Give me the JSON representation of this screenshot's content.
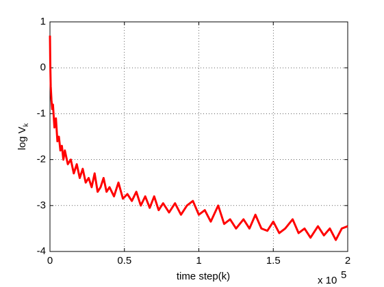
{
  "chart_data": {
    "type": "line",
    "xlabel": "time step(k)",
    "ylabel": "log V",
    "ylabel_subscript": "k",
    "x_multiplier": "x 10",
    "x_multiplier_exponent": "5",
    "x": [
      0,
      0.002,
      0.005,
      0.01,
      0.015,
      0.02,
      0.03,
      0.04,
      0.05,
      0.06,
      0.07,
      0.08,
      0.09,
      0.1,
      0.12,
      0.14,
      0.16,
      0.18,
      0.2,
      0.22,
      0.24,
      0.26,
      0.28,
      0.3,
      0.32,
      0.34,
      0.36,
      0.38,
      0.4,
      0.43,
      0.46,
      0.49,
      0.52,
      0.55,
      0.58,
      0.61,
      0.64,
      0.67,
      0.7,
      0.73,
      0.76,
      0.8,
      0.84,
      0.88,
      0.92,
      0.96,
      1.0,
      1.04,
      1.08,
      1.13,
      1.17,
      1.21,
      1.25,
      1.3,
      1.34,
      1.38,
      1.42,
      1.46,
      1.5,
      1.54,
      1.58,
      1.63,
      1.67,
      1.71,
      1.75,
      1.8,
      1.84,
      1.88,
      1.92,
      1.96,
      2.0
    ],
    "series": [
      {
        "color": "#ff0000",
        "values": [
          0.7,
          0.1,
          -0.4,
          -0.7,
          -0.9,
          -0.8,
          -1.3,
          -1.1,
          -1.6,
          -1.5,
          -1.8,
          -1.7,
          -2.0,
          -1.8,
          -2.1,
          -2.0,
          -2.3,
          -2.1,
          -2.4,
          -2.2,
          -2.5,
          -2.4,
          -2.6,
          -2.3,
          -2.7,
          -2.6,
          -2.4,
          -2.7,
          -2.6,
          -2.8,
          -2.5,
          -2.85,
          -2.75,
          -2.9,
          -2.7,
          -3.0,
          -2.8,
          -3.05,
          -2.8,
          -3.1,
          -2.95,
          -3.15,
          -2.95,
          -3.2,
          -3.0,
          -2.9,
          -3.2,
          -3.1,
          -3.35,
          -3.0,
          -3.4,
          -3.3,
          -3.5,
          -3.3,
          -3.5,
          -3.2,
          -3.5,
          -3.55,
          -3.35,
          -3.6,
          -3.5,
          -3.3,
          -3.6,
          -3.5,
          -3.7,
          -3.45,
          -3.65,
          -3.5,
          -3.75,
          -3.5,
          -3.45
        ]
      }
    ],
    "xlim": [
      0,
      2
    ],
    "xticks": [
      0,
      0.5,
      1,
      1.5,
      2
    ],
    "ylim": [
      -4,
      1
    ],
    "yticks": [
      -4,
      -3,
      -2,
      -1,
      0,
      1
    ],
    "grid": true
  }
}
